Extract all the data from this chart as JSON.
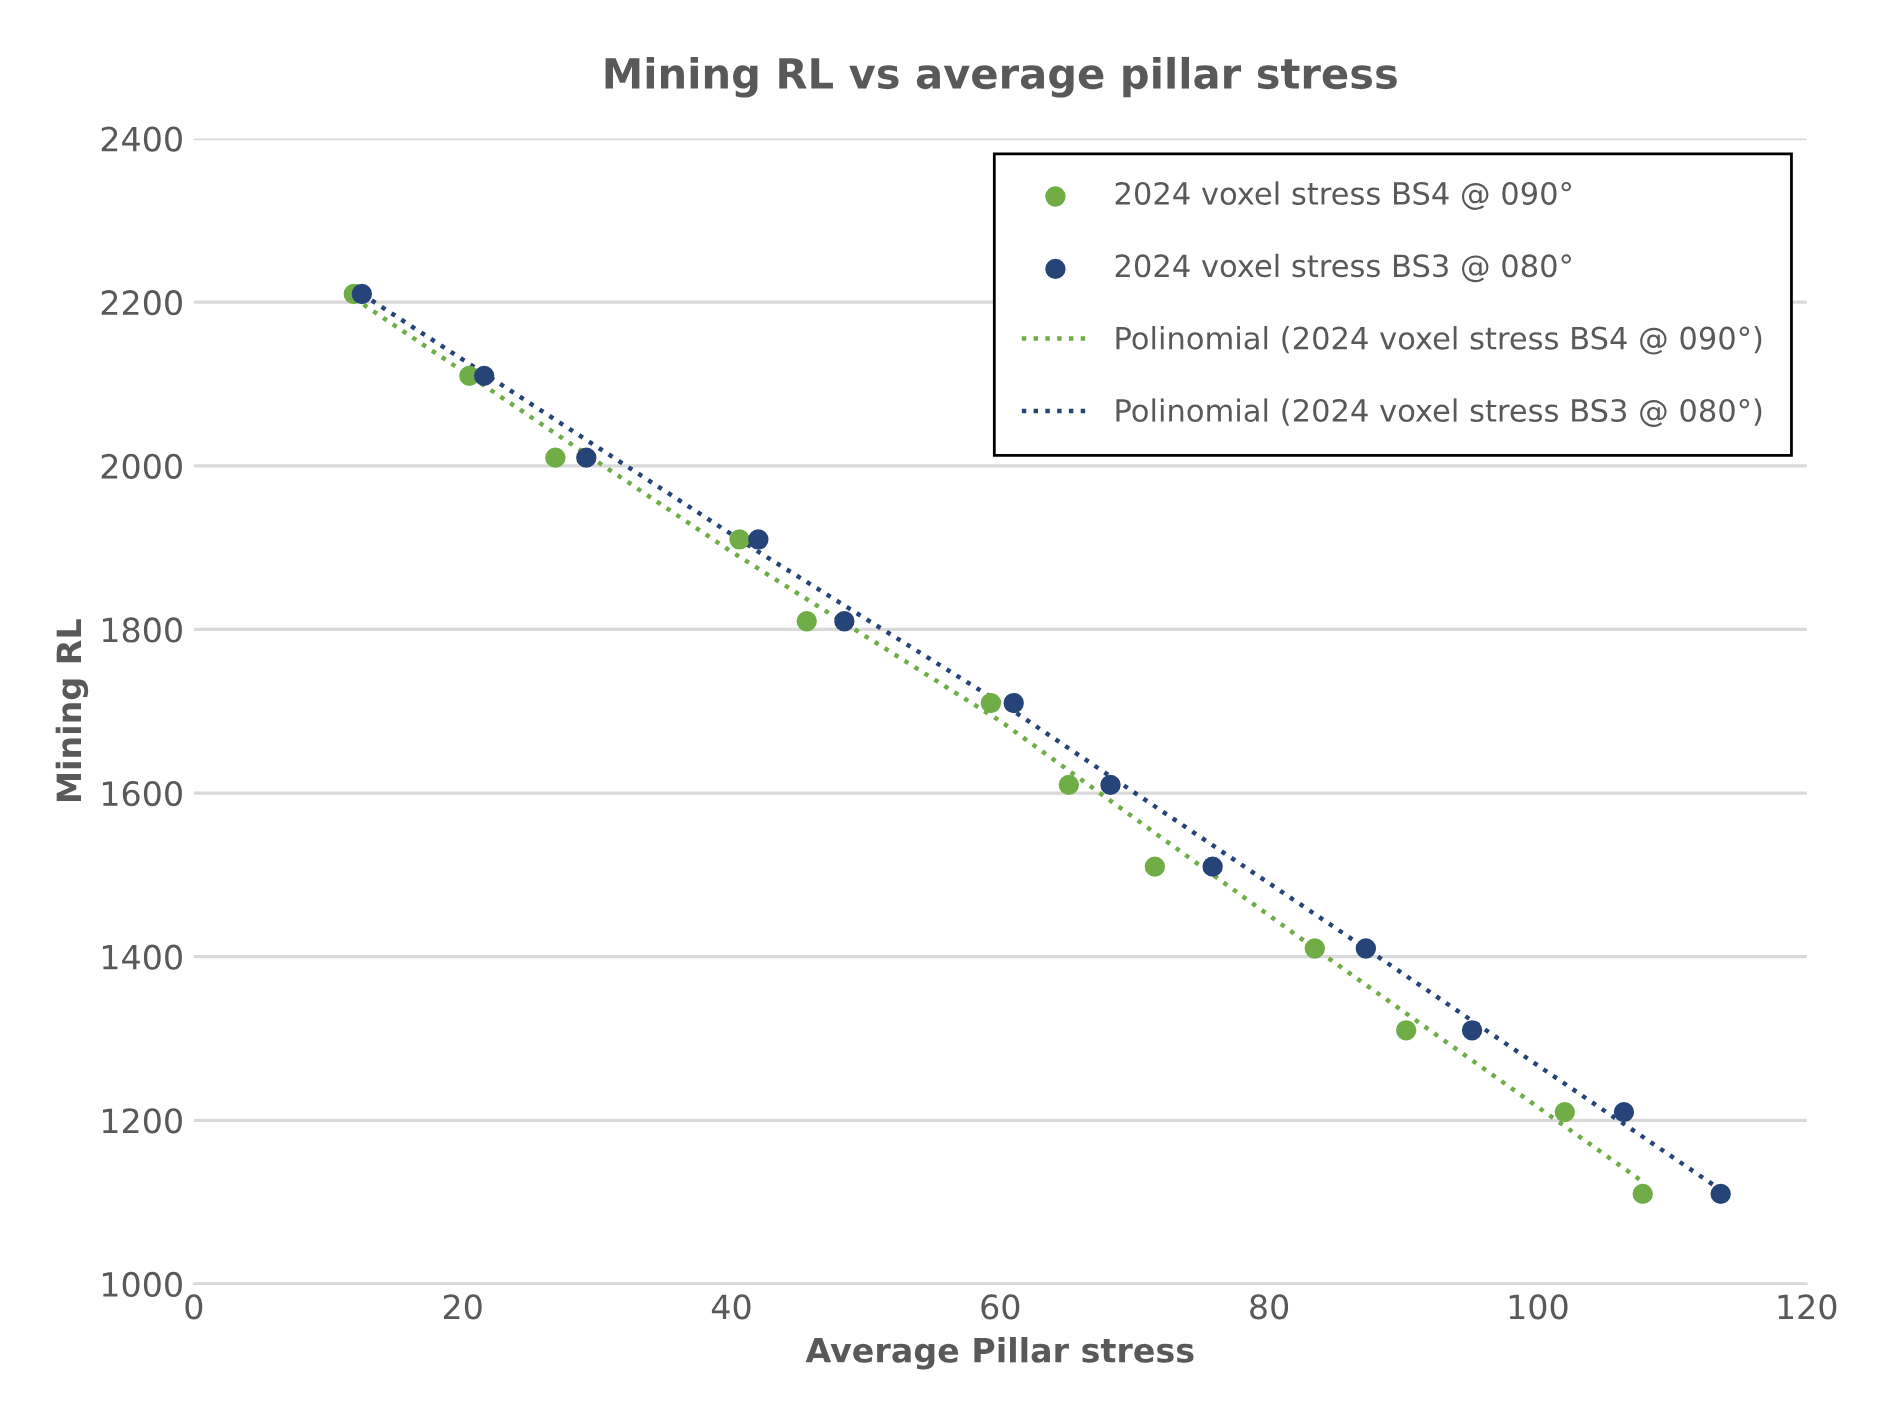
{
  "chart_data": {
    "type": "scatter",
    "title": "Mining RL vs average pillar stress",
    "xlabel": "Average Pillar stress",
    "ylabel": "Mining RL",
    "xlim": [
      0,
      120
    ],
    "xticks": [
      0,
      20,
      40,
      60,
      80,
      100,
      120
    ],
    "ylim": [
      1000,
      2400
    ],
    "yticks": [
      1000,
      1200,
      1400,
      1600,
      1800,
      2000,
      2200,
      2400
    ],
    "grid": "y",
    "legend": "top right",
    "series": [
      {
        "name": "2024 voxel stress BS4 @ 090°",
        "marker": "circle",
        "color": "#70ad47",
        "x": [
          11.9,
          20.5,
          26.9,
          40.6,
          45.6,
          59.3,
          65.1,
          71.5,
          83.4,
          90.2,
          102.0,
          107.8
        ],
        "values": [
          2210,
          2110,
          2010,
          1910,
          1810,
          1710,
          1610,
          1510,
          1410,
          1310,
          1210,
          1110
        ]
      },
      {
        "name": "2024 voxel stress BS3 @ 080°",
        "marker": "circle",
        "color": "#264478",
        "x": [
          12.5,
          21.6,
          29.2,
          42.0,
          48.4,
          61.0,
          68.2,
          75.8,
          87.2,
          95.1,
          106.4,
          113.6
        ],
        "values": [
          2210,
          2110,
          2010,
          1910,
          1810,
          1710,
          1610,
          1510,
          1410,
          1310,
          1210,
          1110
        ]
      },
      {
        "name": "Polinomial (2024 voxel stress BS4 @ 090°)",
        "type": "line",
        "line_style": "dotted",
        "marker": "none",
        "color": "#70ad47",
        "x": [
          11.9,
          40,
          60,
          83.4,
          107.8
        ],
        "values": [
          2205,
          1895,
          1688,
          1410,
          1125
        ]
      },
      {
        "name": "Polinomial (2024 voxel stress BS3 @ 080°)",
        "type": "line",
        "line_style": "dotted",
        "marker": "none",
        "color": "#264478",
        "x": [
          12.5,
          42,
          61,
          87.2,
          113.6
        ],
        "values": [
          2210,
          1895,
          1700,
          1410,
          1115
        ]
      }
    ]
  }
}
